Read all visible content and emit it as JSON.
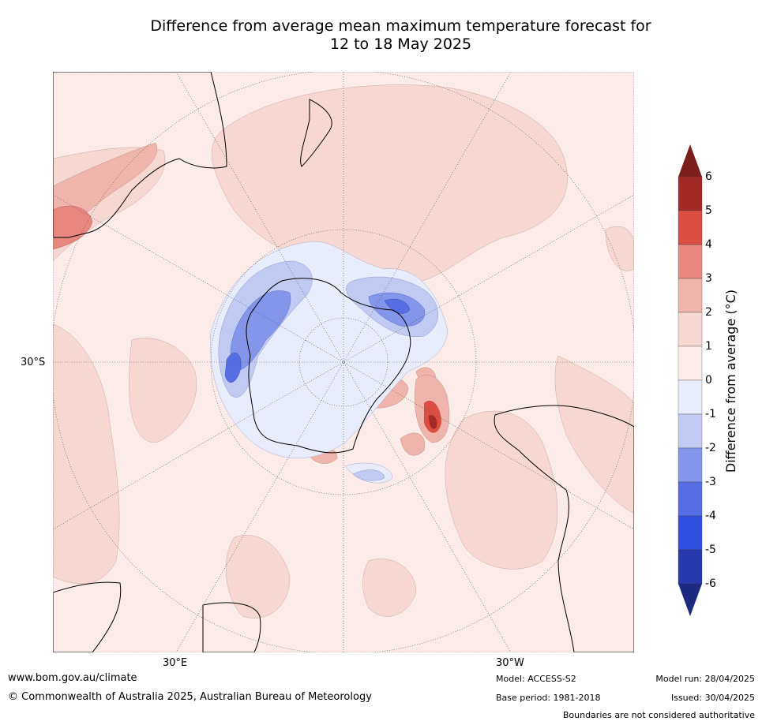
{
  "title_line1": "Difference from average mean maximum temperature forecast for",
  "title_line2": "12 to 18 May 2025",
  "map": {
    "lat_label": "30°S",
    "lon_label_east": "30°E",
    "lon_label_west": "30°W",
    "projection": "south-polar-stereographic"
  },
  "colorbar": {
    "label": "Difference from average (°C)",
    "ticks": [
      "6",
      "5",
      "4",
      "3",
      "2",
      "1",
      "0",
      "-1",
      "-2",
      "-3",
      "-4",
      "-5",
      "-6"
    ],
    "colors_top_to_bottom": [
      "#a52a25",
      "#db4f42",
      "#e8877e",
      "#efb4ab",
      "#f6d7d2",
      "#fbece9",
      "#e9edfb",
      "#c1caf2",
      "#8496ea",
      "#566ee4",
      "#2f4fdf",
      "#263aad"
    ],
    "extend_over_color": "#7a1f1a",
    "extend_under_color": "#1e2a80"
  },
  "footer": {
    "url": "www.bom.gov.au/climate",
    "copyright": "© Commonwealth of Australia 2025, Australian Bureau of Meteorology",
    "model": "Model: ACCESS-S2",
    "base_period": "Base period: 1981-2018",
    "model_run": "Model run: 28/04/2025",
    "issued": "Issued: 30/04/2025",
    "disclaimer": "Boundaries are not considered authoritative"
  }
}
